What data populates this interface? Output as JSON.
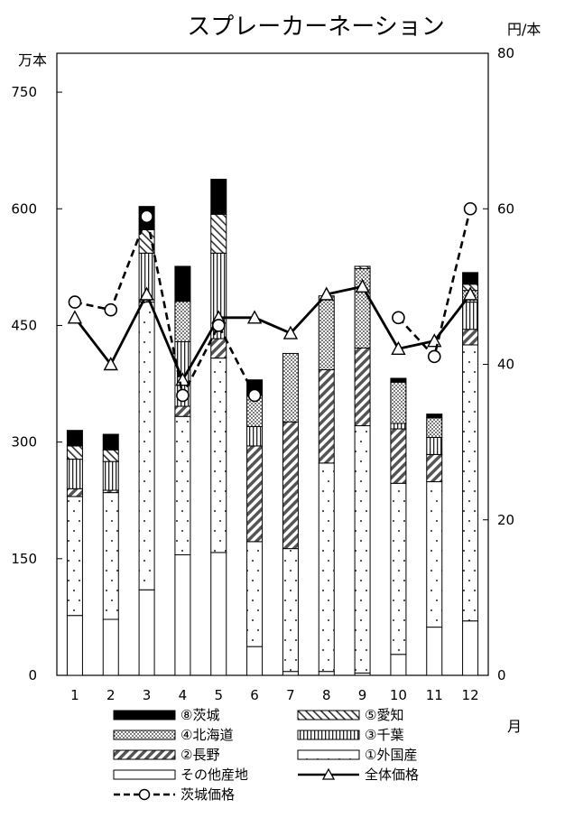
{
  "chart_data": {
    "type": "bar",
    "title": "スプレーカーネーション",
    "left_unit": "万本",
    "right_unit": "円/本",
    "x_unit": "月",
    "categories": [
      "1",
      "2",
      "3",
      "4",
      "5",
      "6",
      "7",
      "8",
      "9",
      "10",
      "11",
      "12"
    ],
    "ylim_left": [
      0,
      800
    ],
    "yticks_left": [
      "0",
      "150",
      "300",
      "450",
      "600",
      "750"
    ],
    "ylim_right": [
      0,
      80
    ],
    "yticks_right": [
      "0",
      "20",
      "40",
      "60",
      "80"
    ],
    "bar_series": [
      {
        "name": "その他産地",
        "pattern": "white",
        "values": [
          77,
          72,
          110,
          155,
          158,
          37,
          5,
          5,
          3,
          27,
          62,
          70
        ]
      },
      {
        "name": "①外国産",
        "pattern": "dots",
        "values": [
          153,
          163,
          370,
          178,
          250,
          135,
          158,
          268,
          318,
          220,
          187,
          355
        ]
      },
      {
        "name": "②長野",
        "pattern": "diag",
        "values": [
          10,
          3,
          3,
          13,
          25,
          123,
          163,
          120,
          100,
          70,
          35,
          20
        ]
      },
      {
        "name": "③千葉",
        "pattern": "vert",
        "values": [
          38,
          37,
          60,
          83,
          110,
          25,
          0,
          0,
          0,
          7,
          22,
          35
        ]
      },
      {
        "name": "④北海道",
        "pattern": "dense",
        "values": [
          0,
          0,
          0,
          52,
          0,
          40,
          88,
          95,
          102,
          53,
          25,
          15
        ]
      },
      {
        "name": "⑤愛知",
        "pattern": "hatch",
        "values": [
          17,
          15,
          30,
          0,
          50,
          0,
          0,
          0,
          3,
          0,
          0,
          8
        ]
      },
      {
        "name": "⑧茨城",
        "pattern": "black",
        "values": [
          20,
          20,
          30,
          45,
          45,
          20,
          0,
          0,
          0,
          5,
          5,
          15
        ]
      }
    ],
    "line_series": [
      {
        "name": "全体価格",
        "style": "solid-triangle",
        "axis": "right",
        "values": [
          46,
          40,
          49,
          38,
          46,
          46,
          44,
          49,
          50,
          42,
          43,
          49
        ]
      },
      {
        "name": "茨城価格",
        "style": "dashed-circle",
        "axis": "right",
        "values": [
          48,
          47,
          59,
          36,
          45,
          36,
          null,
          null,
          null,
          46,
          41,
          60
        ]
      }
    ]
  },
  "legend": [
    {
      "label": "⑧茨城",
      "pattern": "black"
    },
    {
      "label": "⑤愛知",
      "pattern": "hatch"
    },
    {
      "label": "④北海道",
      "pattern": "dense"
    },
    {
      "label": "③千葉",
      "pattern": "vert"
    },
    {
      "label": "②長野",
      "pattern": "diag"
    },
    {
      "label": "①外国産",
      "pattern": "dots"
    },
    {
      "label": "その他産地",
      "pattern": "white"
    },
    {
      "label": "全体価格",
      "pattern": "line-tri"
    },
    {
      "label": "茨城価格",
      "pattern": "line-circ"
    }
  ]
}
